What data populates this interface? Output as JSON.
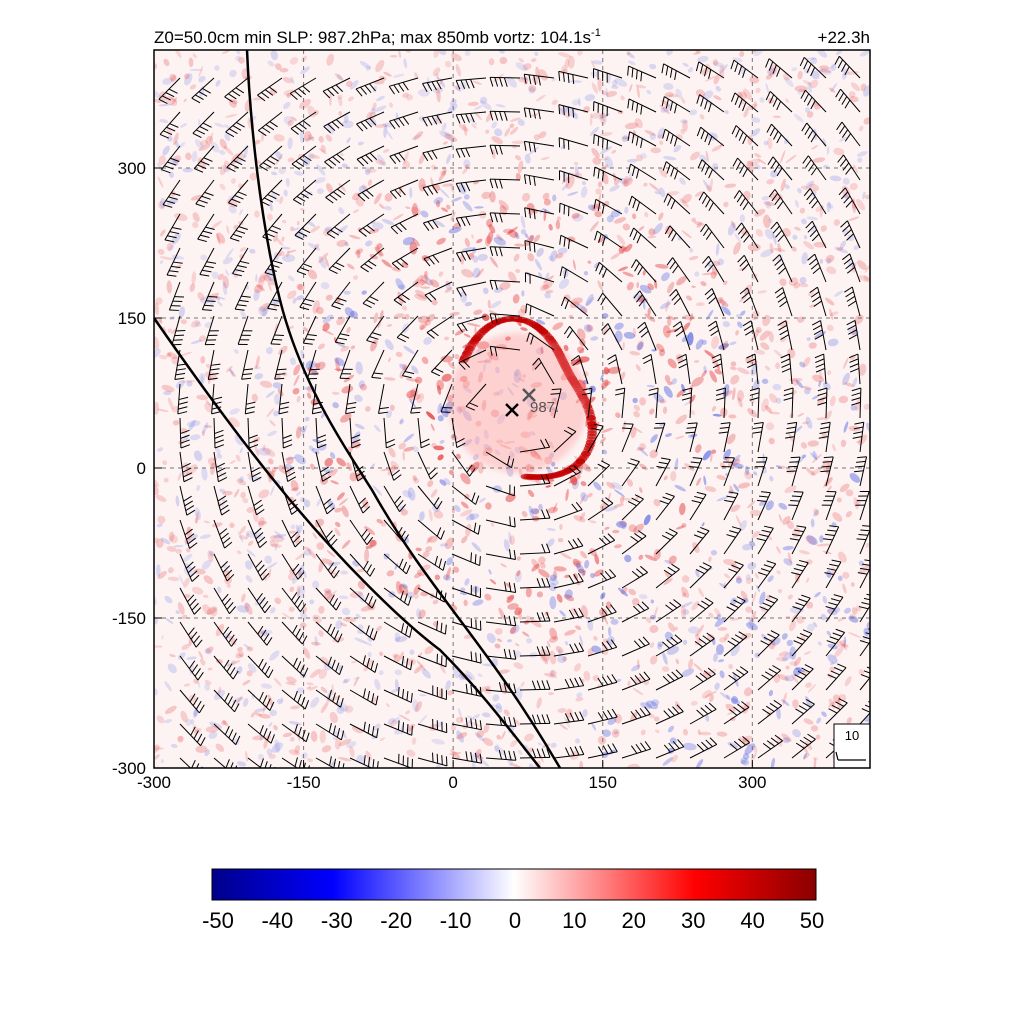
{
  "title": "Z0=50.0cm  min SLP: 987.2hPa; max 850mb vortz: 104.1s",
  "title_superscript": "-1",
  "time_label": "+22.3h",
  "slp_label": "987.",
  "ref_vector_label": "10",
  "x_ticks": [
    "-300",
    "-150",
    "0",
    "150",
    "300"
  ],
  "y_ticks": [
    "300",
    "150",
    "0",
    "-150",
    "-300"
  ],
  "colorbar_labels": [
    "-50",
    "-40",
    "-30",
    "-20",
    "-10",
    "0",
    "10",
    "20",
    "30",
    "40",
    "50"
  ],
  "colorbar_colors": [
    "#00008b",
    "#0000ff",
    "#ffffff",
    "#ff0000",
    "#8b0000"
  ],
  "chart_data": {
    "type": "heatmap",
    "x_ticks": [
      -300,
      -150,
      0,
      150,
      300
    ],
    "y_ticks": [
      -300,
      -150,
      0,
      150,
      300
    ],
    "xlim": [
      -300,
      418
    ],
    "ylim": [
      -300,
      418
    ],
    "colorbar_range": [
      -50,
      50
    ],
    "colorbar_ticks": [
      -50,
      -40,
      -30,
      -20,
      -10,
      0,
      10,
      20,
      30,
      40,
      50
    ],
    "center_markers": [
      {
        "x": 60,
        "y": 60
      },
      {
        "x": 78,
        "y": 75
      }
    ],
    "grid": "dashed"
  }
}
